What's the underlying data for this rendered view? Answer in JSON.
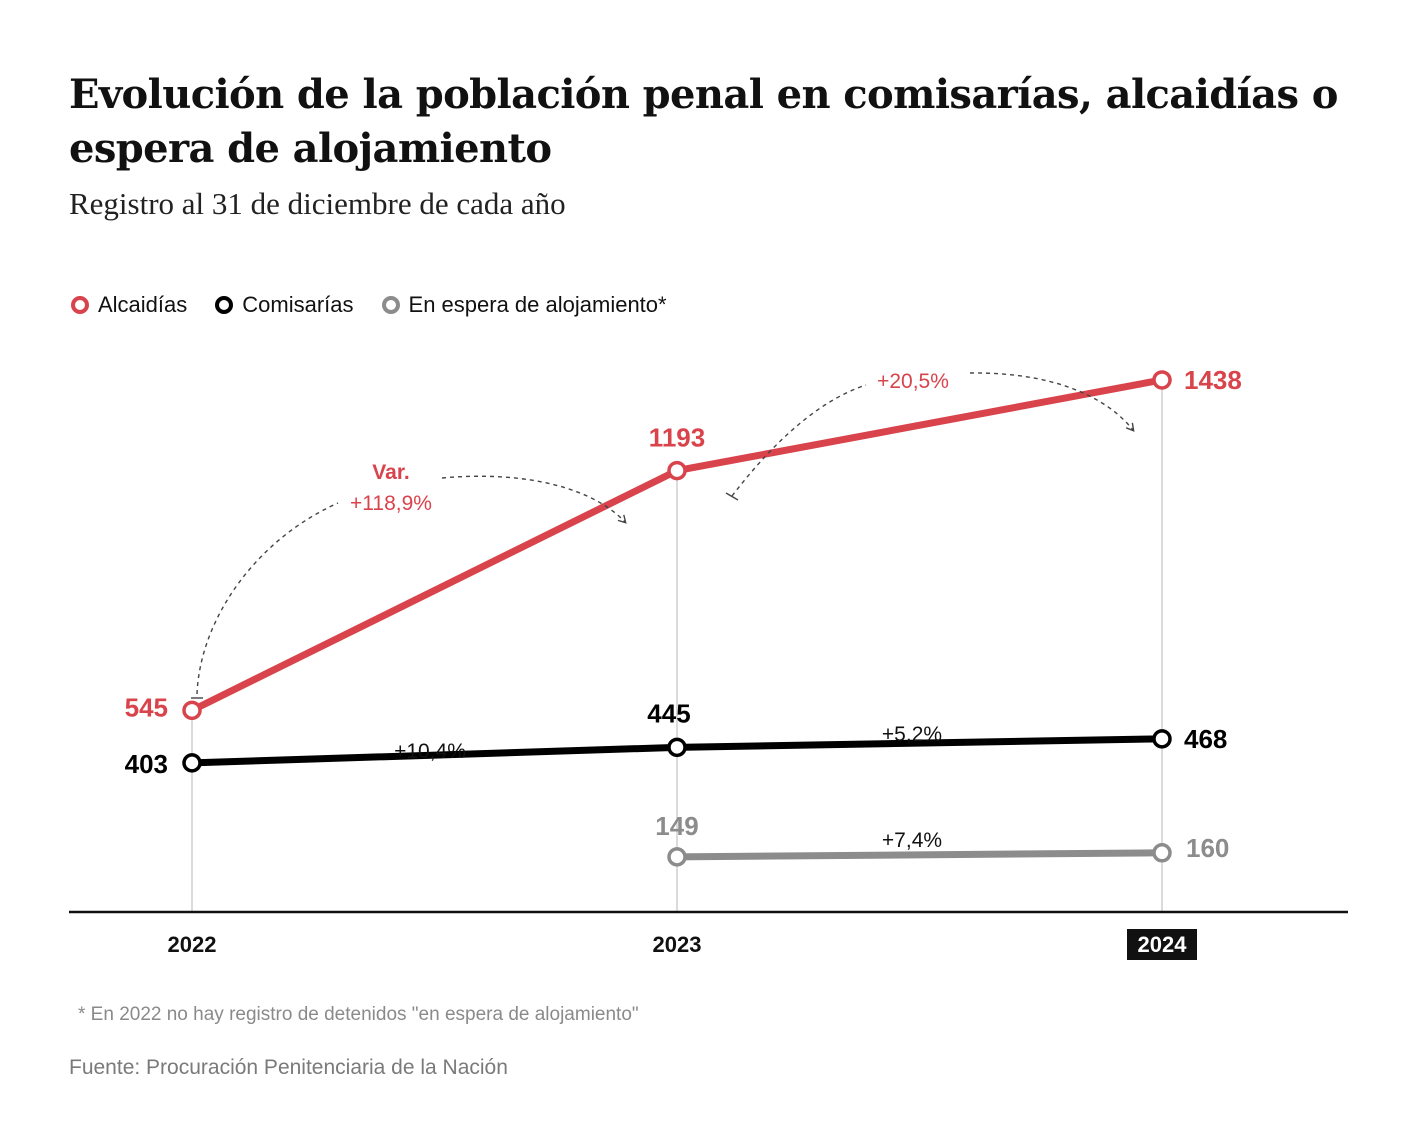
{
  "title": "Evolución de la población penal en comisarías, alcaidías o espera de alojamiento",
  "subtitle": "Registro al 31 de diciembre de cada año",
  "footnote": "* En 2022 no hay registro de detenidos \"en espera de alojamiento\"",
  "source": "Fuente: Procuración Penitenciaria de la Nación",
  "colors": {
    "alcaidias": "#d9434b",
    "comisarias": "#000000",
    "espera": "#8c8c8c",
    "axis": "#111111",
    "gridline": "#cfcfcf",
    "annotation": "#444444"
  },
  "chart_data": {
    "type": "line",
    "categories": [
      "2022",
      "2023",
      "2024"
    ],
    "highlighted_category": "2024",
    "series": [
      {
        "key": "alcaidias",
        "name": "Alcaidías",
        "values": [
          545,
          1193,
          1438
        ],
        "labels": [
          "545",
          "1193",
          "1438"
        ]
      },
      {
        "key": "comisarias",
        "name": "Comisarías",
        "values": [
          403,
          445,
          468
        ],
        "labels": [
          "403",
          "445",
          "468"
        ]
      },
      {
        "key": "espera",
        "name": "En espera de alojamiento*",
        "values": [
          null,
          149,
          160
        ],
        "labels": [
          "",
          "149",
          "160"
        ]
      }
    ],
    "variations": [
      {
        "series": "alcaidias",
        "from": "2022",
        "to": "2023",
        "prefix": "Var.",
        "label": "+118,9%"
      },
      {
        "series": "alcaidias",
        "from": "2023",
        "to": "2024",
        "prefix": "",
        "label": "+20,5%"
      },
      {
        "series": "comisarias",
        "from": "2022",
        "to": "2023",
        "prefix": "",
        "label": "+10,4%"
      },
      {
        "series": "comisarias",
        "from": "2023",
        "to": "2024",
        "prefix": "",
        "label": "+5,2%"
      },
      {
        "series": "espera",
        "from": "2023",
        "to": "2024",
        "prefix": "",
        "label": "+7,4%"
      }
    ],
    "ylim": [
      0,
      1600
    ],
    "xlabel": "",
    "ylabel": "",
    "grid": false,
    "legend_position": "top-left"
  }
}
